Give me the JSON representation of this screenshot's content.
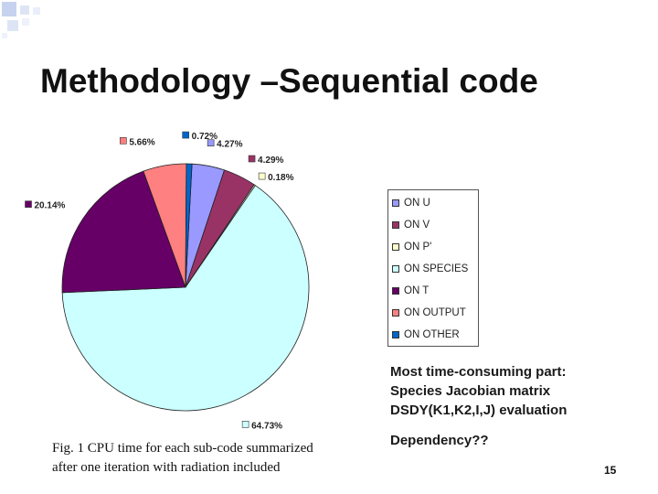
{
  "slide": {
    "title": "Methodology –Sequential code",
    "note_lines": [
      "Most time-consuming part:",
      "Species Jacobian matrix",
      "DSDY(K1,K2,I,J) evaluation"
    ],
    "dependency": "Dependency??",
    "caption_lines": [
      "Fig. 1 CPU time for each sub-code summarized",
      "after one iteration with radiation included"
    ],
    "page_number": "15"
  },
  "chart_data": {
    "type": "pie",
    "title": "",
    "legend_position": "right",
    "slices": [
      {
        "label": "ON U",
        "value": 4.27,
        "value_label": "4.27%",
        "color": "#9999ff"
      },
      {
        "label": "ON V",
        "value": 4.29,
        "value_label": "4.29%",
        "color": "#993366"
      },
      {
        "label": "ON P'",
        "value": 0.18,
        "value_label": "0.18%",
        "color": "#ffffcc"
      },
      {
        "label": "ON SPECIES",
        "value": 64.73,
        "value_label": "64.73%",
        "color": "#ccffff"
      },
      {
        "label": "ON T",
        "value": 20.14,
        "value_label": "20.14%",
        "color": "#660066"
      },
      {
        "label": "ON OUTPUT",
        "value": 5.66,
        "value_label": "5.66%",
        "color": "#ff8080"
      },
      {
        "label": "ON OTHER",
        "value": 0.72,
        "value_label": "0.72%",
        "color": "#0066cc"
      }
    ]
  }
}
